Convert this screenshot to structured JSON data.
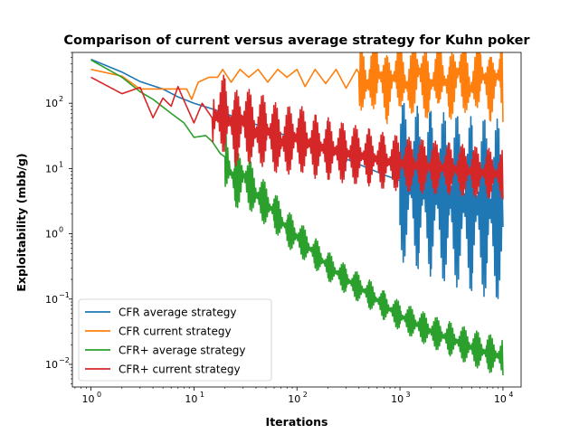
{
  "chart_data": {
    "type": "line",
    "title": "Comparison of current versus average strategy for Kuhn poker",
    "xlabel": "Iterations",
    "ylabel": "Exploitability (mbb/g)",
    "xscale": "log",
    "yscale": "log",
    "xlim": [
      0.66,
      15000
    ],
    "ylim": [
      0.0045,
      600
    ],
    "x_ticks": [
      {
        "value": 1,
        "label": "10",
        "exp": "0"
      },
      {
        "value": 10,
        "label": "10",
        "exp": "1"
      },
      {
        "value": 100,
        "label": "10",
        "exp": "2"
      },
      {
        "value": 1000,
        "label": "10",
        "exp": "3"
      },
      {
        "value": 10000,
        "label": "10",
        "exp": "4"
      }
    ],
    "y_ticks": [
      {
        "value": 0.01,
        "label": "10",
        "exp": "−2"
      },
      {
        "value": 0.1,
        "label": "10",
        "exp": "−1"
      },
      {
        "value": 1,
        "label": "10",
        "exp": "0"
      },
      {
        "value": 10,
        "label": "10",
        "exp": "1"
      },
      {
        "value": 100,
        "label": "10",
        "exp": "2"
      }
    ],
    "grid": false,
    "legend_position": "lower-left",
    "series": [
      {
        "name": "CFR average strategy",
        "color": "#1f77b4",
        "points": [
          [
            1,
            470
          ],
          [
            2,
            300
          ],
          [
            3,
            215
          ],
          [
            5,
            165
          ],
          [
            7,
            125
          ],
          [
            10,
            100
          ],
          [
            15,
            82
          ],
          [
            20,
            70
          ],
          [
            30,
            55
          ],
          [
            50,
            42
          ],
          [
            70,
            34
          ],
          [
            100,
            28
          ],
          [
            150,
            22
          ],
          [
            200,
            18.5
          ],
          [
            300,
            14
          ],
          [
            500,
            10
          ],
          [
            700,
            8
          ],
          [
            1000,
            6.5
          ],
          [
            1500,
            5
          ],
          [
            2000,
            4.2
          ],
          [
            3000,
            3.4
          ],
          [
            5000,
            2.8
          ],
          [
            7000,
            2.5
          ],
          [
            10000,
            2.25
          ]
        ],
        "band": [
          [
            1000,
            0.06
          ],
          [
            10000,
            0.04
          ]
        ]
      },
      {
        "name": "CFR current strategy",
        "color": "#ff7f0e",
        "points": [
          [
            1,
            330
          ],
          [
            2,
            260
          ],
          [
            3,
            165
          ],
          [
            5,
            165
          ],
          [
            8.5,
            165
          ],
          [
            9.5,
            115
          ],
          [
            11,
            210
          ],
          [
            14,
            250
          ],
          [
            17,
            250
          ],
          [
            19,
            330
          ],
          [
            23,
            210
          ],
          [
            28,
            330
          ],
          [
            34,
            250
          ],
          [
            42,
            330
          ],
          [
            52,
            210
          ],
          [
            65,
            330
          ],
          [
            80,
            250
          ],
          [
            100,
            330
          ],
          [
            120,
            180
          ],
          [
            150,
            330
          ],
          [
            190,
            200
          ],
          [
            240,
            330
          ],
          [
            300,
            170
          ],
          [
            380,
            330
          ],
          [
            480,
            190
          ],
          [
            600,
            330
          ],
          [
            750,
            160
          ],
          [
            950,
            330
          ],
          [
            1200,
            170
          ],
          [
            1500,
            330
          ],
          [
            1900,
            160
          ],
          [
            2400,
            330
          ],
          [
            3000,
            160
          ],
          [
            3800,
            330
          ],
          [
            4800,
            160
          ],
          [
            6000,
            330
          ],
          [
            7500,
            160
          ],
          [
            9500,
            330
          ],
          [
            10000,
            160
          ]
        ],
        "band": [
          [
            400,
            0.3
          ],
          [
            10000,
            0.32
          ]
        ]
      },
      {
        "name": "CFR+ average strategy",
        "color": "#2ca02c",
        "points": [
          [
            1,
            460
          ],
          [
            2,
            250
          ],
          [
            3,
            150
          ],
          [
            4,
            115
          ],
          [
            6,
            70
          ],
          [
            8,
            50
          ],
          [
            10,
            30
          ],
          [
            13,
            32
          ],
          [
            15,
            26
          ],
          [
            18,
            17
          ],
          [
            20,
            15
          ],
          [
            25,
            6
          ],
          [
            30,
            8
          ],
          [
            40,
            4
          ],
          [
            60,
            2.2
          ],
          [
            80,
            1.2
          ],
          [
            100,
            0.9
          ],
          [
            150,
            0.5
          ],
          [
            200,
            0.32
          ],
          [
            300,
            0.2
          ],
          [
            500,
            0.12
          ],
          [
            700,
            0.08
          ],
          [
            1000,
            0.055
          ],
          [
            1500,
            0.04
          ],
          [
            2000,
            0.032
          ],
          [
            3000,
            0.025
          ],
          [
            5000,
            0.018
          ],
          [
            7000,
            0.015
          ],
          [
            10000,
            0.013
          ]
        ],
        "band": [
          [
            20,
            0.35
          ],
          [
            60,
            0.5
          ],
          [
            200,
            0.6
          ],
          [
            1000,
            0.6
          ],
          [
            10000,
            0.5
          ]
        ]
      },
      {
        "name": "CFR+ current strategy",
        "color": "#d62728",
        "points": [
          [
            1,
            250
          ],
          [
            2,
            140
          ],
          [
            3,
            175
          ],
          [
            4,
            60
          ],
          [
            5,
            120
          ],
          [
            6,
            90
          ],
          [
            7,
            180
          ],
          [
            8,
            110
          ],
          [
            10,
            50
          ],
          [
            12,
            100
          ],
          [
            15,
            60
          ],
          [
            20,
            70
          ],
          [
            25,
            40
          ],
          [
            30,
            55
          ],
          [
            40,
            35
          ],
          [
            50,
            40
          ],
          [
            70,
            25
          ],
          [
            100,
            30
          ],
          [
            150,
            22
          ],
          [
            200,
            20
          ],
          [
            300,
            17
          ],
          [
            500,
            15
          ],
          [
            700,
            13
          ],
          [
            1000,
            12
          ],
          [
            1500,
            11
          ],
          [
            2000,
            10.5
          ],
          [
            3000,
            10
          ],
          [
            5000,
            9
          ],
          [
            7000,
            8.5
          ],
          [
            10000,
            8
          ]
        ],
        "band": [
          [
            15,
            0.25
          ],
          [
            80,
            0.3
          ],
          [
            300,
            0.35
          ],
          [
            1000,
            0.38
          ],
          [
            10000,
            0.42
          ]
        ]
      }
    ]
  }
}
